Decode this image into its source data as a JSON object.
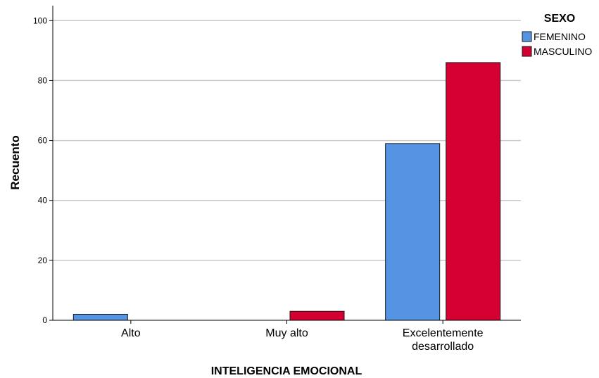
{
  "chart_data": {
    "type": "bar",
    "title": "",
    "xlabel": "INTELIGENCIA EMOCIONAL",
    "ylabel": "Recuento",
    "categories": [
      [
        "Alto"
      ],
      [
        "Muy alto"
      ],
      [
        "Excelentemente",
        "desarrollado"
      ]
    ],
    "ylim": [
      0,
      105
    ],
    "yticks": [
      0,
      20,
      40,
      60,
      80,
      100
    ],
    "grid": true,
    "legend": {
      "title": "SEXO",
      "placement": "top-right"
    },
    "series": [
      {
        "name": "FEMENINO",
        "color": "#5494E2",
        "values": [
          2,
          0,
          59
        ]
      },
      {
        "name": "MASCULINO",
        "color": "#D50032",
        "values": [
          0,
          3,
          86
        ]
      }
    ]
  }
}
